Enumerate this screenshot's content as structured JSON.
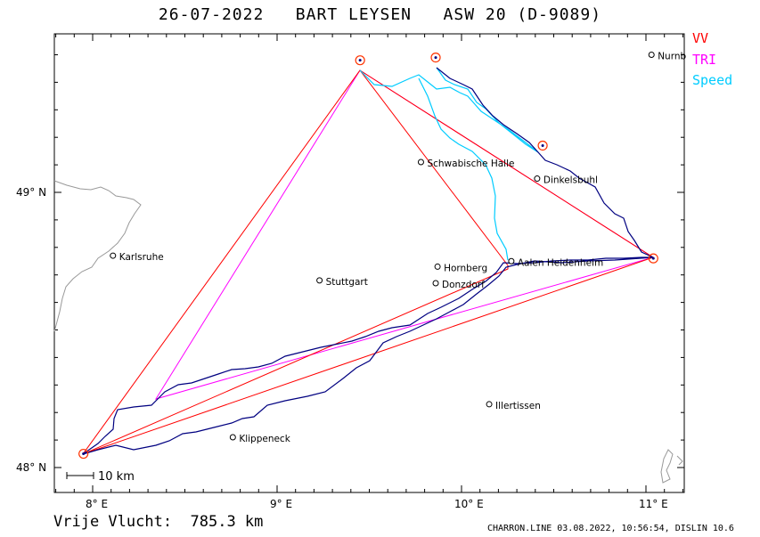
{
  "title": "26-07-2022   BART LEYSEN   ASW 20 (D-9089)",
  "legend": [
    {
      "label": "VV",
      "color": "#ff0000"
    },
    {
      "label": "TRI",
      "color": "#ff00ff"
    },
    {
      "label": "Speed",
      "color": "#00ccff"
    }
  ],
  "axes": {
    "lon_labels": [
      "8° E",
      "9° E",
      "10° E",
      "11° E"
    ],
    "lat_labels": [
      "49° N",
      "48° N"
    ]
  },
  "scale_label": "10 km",
  "towns": [
    {
      "name": "Nurnb",
      "lon": 11.03,
      "lat": 49.5
    },
    {
      "name": "Schwabische Halle",
      "lon": 9.78,
      "lat": 49.11
    },
    {
      "name": "Dinkelsbuhl",
      "lon": 10.41,
      "lat": 49.05
    },
    {
      "name": "Karlsruhe",
      "lon": 8.11,
      "lat": 48.77
    },
    {
      "name": "Aalen Heidenheim",
      "lon": 10.27,
      "lat": 48.75
    },
    {
      "name": "Hornberg",
      "lon": 9.87,
      "lat": 48.73
    },
    {
      "name": "Stuttgart",
      "lon": 9.23,
      "lat": 48.68
    },
    {
      "name": "Donzdorf",
      "lon": 9.86,
      "lat": 48.67
    },
    {
      "name": "Illertissen",
      "lon": 10.15,
      "lat": 48.23
    },
    {
      "name": "Klippeneck",
      "lon": 8.76,
      "lat": 48.11
    }
  ],
  "turnpoints": [
    {
      "lon": 7.95,
      "lat": 48.05
    },
    {
      "lon": 9.45,
      "lat": 49.48
    },
    {
      "lon": 9.86,
      "lat": 49.49
    },
    {
      "lon": 10.44,
      "lat": 49.17
    },
    {
      "lon": 11.04,
      "lat": 48.76
    }
  ],
  "free_distance": "Vrije Vlucht:  785.3 km",
  "footer": "CHARRON.LINE 03.08.2022, 10:56:54, DISLIN 10.6"
}
